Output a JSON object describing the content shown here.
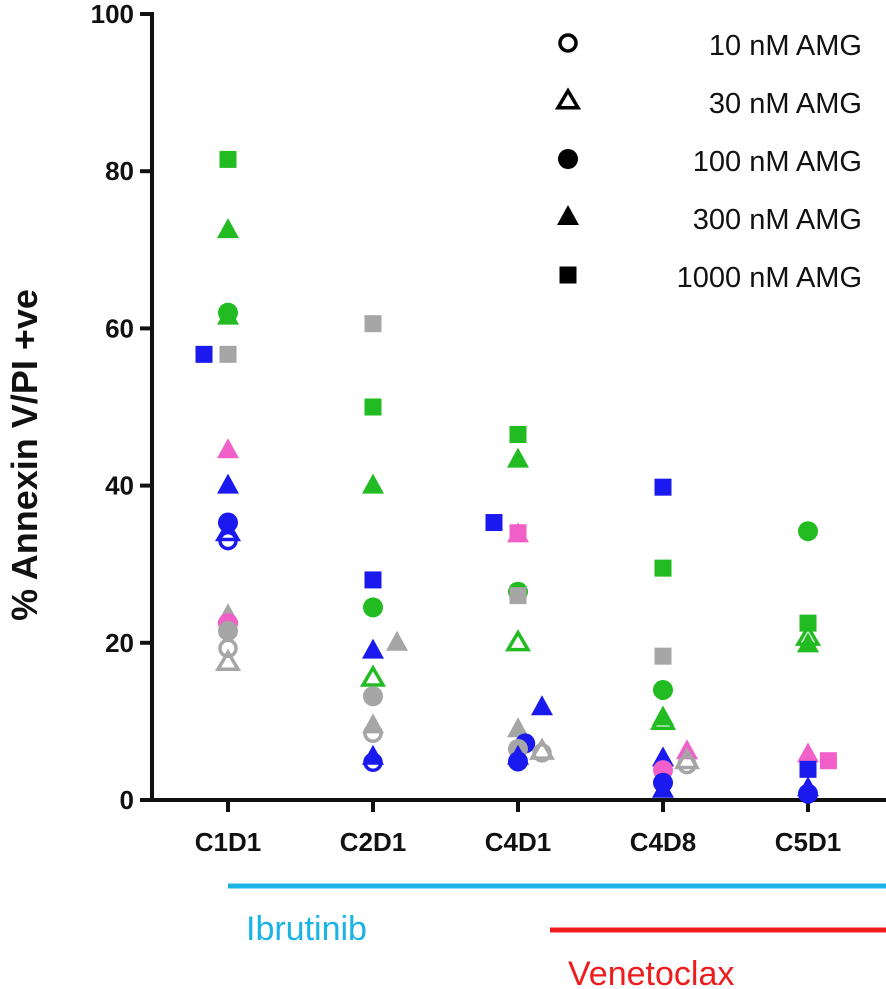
{
  "chart_data": {
    "type": "scatter",
    "ylabel": "% Annexin V/PI +ve",
    "xlabel": "",
    "ylim": [
      0,
      100
    ],
    "yticks": [
      0,
      20,
      40,
      60,
      80,
      100
    ],
    "categories": [
      "C1D1",
      "C2D1",
      "C4D1",
      "C4D8",
      "C5D1"
    ],
    "legend": [
      {
        "name": "10 nM AMG",
        "marker": "circle-open"
      },
      {
        "name": "30 nM AMG",
        "marker": "triangle-open"
      },
      {
        "name": "100 nM AMG",
        "marker": "circle"
      },
      {
        "name": "300 nM AMG",
        "marker": "triangle"
      },
      {
        "name": "1000 nM AMG",
        "marker": "square"
      }
    ],
    "patient_colors": {
      "green": "#22bb22",
      "blue": "#1a1aee",
      "gray": "#a6a6a6",
      "pink": "#f060c8"
    },
    "points": [
      {
        "cat": "C1D1",
        "off": 0,
        "marker": "square",
        "color": "green",
        "value": 81.5
      },
      {
        "cat": "C1D1",
        "off": 0,
        "marker": "triangle",
        "color": "green",
        "value": 72.5
      },
      {
        "cat": "C1D1",
        "off": 0,
        "marker": "circle",
        "color": "green",
        "value": 62
      },
      {
        "cat": "C1D1",
        "off": 0,
        "marker": "triangle",
        "color": "green",
        "value": 61.5
      },
      {
        "cat": "C1D1",
        "off": -1,
        "marker": "square",
        "color": "blue",
        "value": 56.7
      },
      {
        "cat": "C1D1",
        "off": 0,
        "marker": "square",
        "color": "gray",
        "value": 56.7
      },
      {
        "cat": "C1D1",
        "off": 0,
        "marker": "triangle",
        "color": "pink",
        "value": 44.5
      },
      {
        "cat": "C1D1",
        "off": 0,
        "marker": "triangle",
        "color": "blue",
        "value": 40
      },
      {
        "cat": "C1D1",
        "off": 0,
        "marker": "circle",
        "color": "blue",
        "value": 35.3
      },
      {
        "cat": "C1D1",
        "off": 0,
        "marker": "triangle-open",
        "color": "blue",
        "value": 34
      },
      {
        "cat": "C1D1",
        "off": 0,
        "marker": "circle-open",
        "color": "blue",
        "value": 33
      },
      {
        "cat": "C1D1",
        "off": 0,
        "marker": "triangle",
        "color": "gray",
        "value": 23.5
      },
      {
        "cat": "C1D1",
        "off": 0,
        "marker": "circle",
        "color": "pink",
        "value": 22.5
      },
      {
        "cat": "C1D1",
        "off": 0,
        "marker": "circle",
        "color": "gray",
        "value": 21.5
      },
      {
        "cat": "C1D1",
        "off": 0,
        "marker": "circle-open",
        "color": "gray",
        "value": 19.3
      },
      {
        "cat": "C1D1",
        "off": 0,
        "marker": "triangle-open",
        "color": "gray",
        "value": 17.5
      },
      {
        "cat": "C2D1",
        "off": 0,
        "marker": "square",
        "color": "gray",
        "value": 60.6
      },
      {
        "cat": "C2D1",
        "off": 0,
        "marker": "square",
        "color": "green",
        "value": 50
      },
      {
        "cat": "C2D1",
        "off": 0,
        "marker": "triangle",
        "color": "green",
        "value": 40
      },
      {
        "cat": "C2D1",
        "off": 0,
        "marker": "square",
        "color": "blue",
        "value": 28
      },
      {
        "cat": "C2D1",
        "off": 0,
        "marker": "circle",
        "color": "green",
        "value": 24.5
      },
      {
        "cat": "C2D1",
        "off": 1,
        "marker": "triangle",
        "color": "gray",
        "value": 20
      },
      {
        "cat": "C2D1",
        "off": 0,
        "marker": "triangle",
        "color": "blue",
        "value": 19
      },
      {
        "cat": "C2D1",
        "off": 0,
        "marker": "triangle-open",
        "color": "green",
        "value": 15.5
      },
      {
        "cat": "C2D1",
        "off": 0,
        "marker": "circle",
        "color": "gray",
        "value": 13.2
      },
      {
        "cat": "C2D1",
        "off": 0,
        "marker": "triangle",
        "color": "gray",
        "value": 9.5
      },
      {
        "cat": "C2D1",
        "off": 0,
        "marker": "circle-open",
        "color": "gray",
        "value": 8.5
      },
      {
        "cat": "C2D1",
        "off": 0,
        "marker": "triangle",
        "color": "blue",
        "value": 5.5
      },
      {
        "cat": "C2D1",
        "off": 0,
        "marker": "circle-open",
        "color": "blue",
        "value": 4.8
      },
      {
        "cat": "C4D1",
        "off": 0,
        "marker": "square",
        "color": "green",
        "value": 46.5
      },
      {
        "cat": "C4D1",
        "off": 0,
        "marker": "triangle",
        "color": "green",
        "value": 43.3
      },
      {
        "cat": "C4D1",
        "off": -1,
        "marker": "square",
        "color": "blue",
        "value": 35.3
      },
      {
        "cat": "C4D1",
        "off": 0,
        "marker": "square",
        "color": "pink",
        "value": 34
      },
      {
        "cat": "C4D1",
        "off": 0,
        "marker": "triangle",
        "color": "pink",
        "value": 33.8
      },
      {
        "cat": "C4D1",
        "off": 0,
        "marker": "circle",
        "color": "green",
        "value": 26.5
      },
      {
        "cat": "C4D1",
        "off": 0,
        "marker": "square",
        "color": "gray",
        "value": 26
      },
      {
        "cat": "C4D1",
        "off": 0,
        "marker": "triangle-open",
        "color": "green",
        "value": 20
      },
      {
        "cat": "C4D1",
        "off": 1,
        "marker": "triangle",
        "color": "blue",
        "value": 11.8
      },
      {
        "cat": "C4D1",
        "off": 0,
        "marker": "triangle",
        "color": "gray",
        "value": 9
      },
      {
        "cat": "C4D1",
        "off": 0.3,
        "marker": "circle",
        "color": "blue",
        "value": 7.2
      },
      {
        "cat": "C4D1",
        "off": 0,
        "marker": "circle",
        "color": "gray",
        "value": 6.5
      },
      {
        "cat": "C4D1",
        "off": 1,
        "marker": "triangle-open",
        "color": "gray",
        "value": 6.2
      },
      {
        "cat": "C4D1",
        "off": 1,
        "marker": "circle-open",
        "color": "gray",
        "value": 6
      },
      {
        "cat": "C4D1",
        "off": 0,
        "marker": "triangle",
        "color": "blue",
        "value": 5.5
      },
      {
        "cat": "C4D1",
        "off": 0,
        "marker": "circle",
        "color": "blue",
        "value": 4.9
      },
      {
        "cat": "C4D8",
        "off": 0,
        "marker": "square",
        "color": "blue",
        "value": 39.8
      },
      {
        "cat": "C4D8",
        "off": 0,
        "marker": "square",
        "color": "green",
        "value": 29.5
      },
      {
        "cat": "C4D8",
        "off": 0,
        "marker": "square",
        "color": "gray",
        "value": 18.3
      },
      {
        "cat": "C4D8",
        "off": 0,
        "marker": "circle",
        "color": "green",
        "value": 14
      },
      {
        "cat": "C4D8",
        "off": 0,
        "marker": "triangle",
        "color": "green",
        "value": 10.5
      },
      {
        "cat": "C4D8",
        "off": 0,
        "marker": "triangle-open",
        "color": "green",
        "value": 10
      },
      {
        "cat": "C4D8",
        "off": 1,
        "marker": "triangle",
        "color": "pink",
        "value": 6.2
      },
      {
        "cat": "C4D8",
        "off": 0,
        "marker": "triangle",
        "color": "blue",
        "value": 5.3
      },
      {
        "cat": "C4D8",
        "off": 1,
        "marker": "triangle-open",
        "color": "gray",
        "value": 5
      },
      {
        "cat": "C4D8",
        "off": 1,
        "marker": "circle-open",
        "color": "gray",
        "value": 4.5
      },
      {
        "cat": "C4D8",
        "off": 0,
        "marker": "circle",
        "color": "pink",
        "value": 3.8
      },
      {
        "cat": "C4D8",
        "off": 0,
        "marker": "circle",
        "color": "blue",
        "value": 2.2
      },
      {
        "cat": "C4D8",
        "off": 0,
        "marker": "triangle",
        "color": "blue",
        "value": 1.3
      },
      {
        "cat": "C5D1",
        "off": 0,
        "marker": "circle",
        "color": "green",
        "value": 34.2
      },
      {
        "cat": "C5D1",
        "off": 0,
        "marker": "square",
        "color": "green",
        "value": 22.5
      },
      {
        "cat": "C5D1",
        "off": 0,
        "marker": "triangle-open",
        "color": "green",
        "value": 20.7
      },
      {
        "cat": "C5D1",
        "off": 0,
        "marker": "triangle",
        "color": "green",
        "value": 19.8
      },
      {
        "cat": "C5D1",
        "off": 0,
        "marker": "triangle",
        "color": "pink",
        "value": 5.8
      },
      {
        "cat": "C5D1",
        "off": 0.85,
        "marker": "square",
        "color": "pink",
        "value": 5
      },
      {
        "cat": "C5D1",
        "off": 0,
        "marker": "square",
        "color": "blue",
        "value": 3.9
      },
      {
        "cat": "C5D1",
        "off": 0,
        "marker": "triangle",
        "color": "blue",
        "value": 1.5
      },
      {
        "cat": "C5D1",
        "off": 0,
        "marker": "circle",
        "color": "blue",
        "value": 0.8
      }
    ],
    "treatment_bars": [
      {
        "label": "Ibrutinib",
        "color": "#19b3e6",
        "from_category": "C1D1",
        "to_end": true
      },
      {
        "label": "Venetoclax",
        "color": "#ee1c1c",
        "from_category": "C4D1",
        "to_end": true
      }
    ]
  }
}
